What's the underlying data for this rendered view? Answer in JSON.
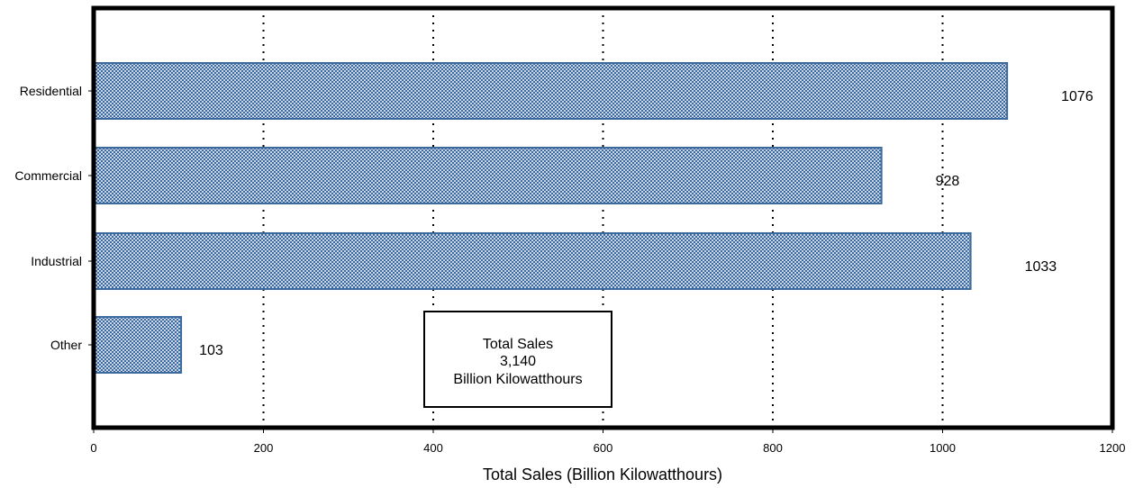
{
  "chart_data": {
    "type": "bar",
    "orientation": "horizontal",
    "categories": [
      "Residential",
      "Commercial",
      "Industrial",
      "Other"
    ],
    "values": [
      1076,
      928,
      1033,
      103
    ],
    "data_labels": [
      "1076",
      "928",
      "1033",
      "103"
    ],
    "xlabel": "Total Sales (Billion Kilowatthours)",
    "ylabel": "",
    "xlim": [
      0,
      1200
    ],
    "x_ticks": [
      0,
      200,
      400,
      600,
      800,
      1000,
      1200
    ],
    "x_tick_labels": [
      "0",
      "200",
      "400",
      "600",
      "800",
      "1000",
      "1200"
    ],
    "grid": "vertical dotted",
    "bar_color": "#3d6a9e",
    "bar_pattern": "checkered",
    "annotation": {
      "line1": "Total Sales",
      "line2": "3,140",
      "line3": "Billion Kilowatthours"
    }
  }
}
